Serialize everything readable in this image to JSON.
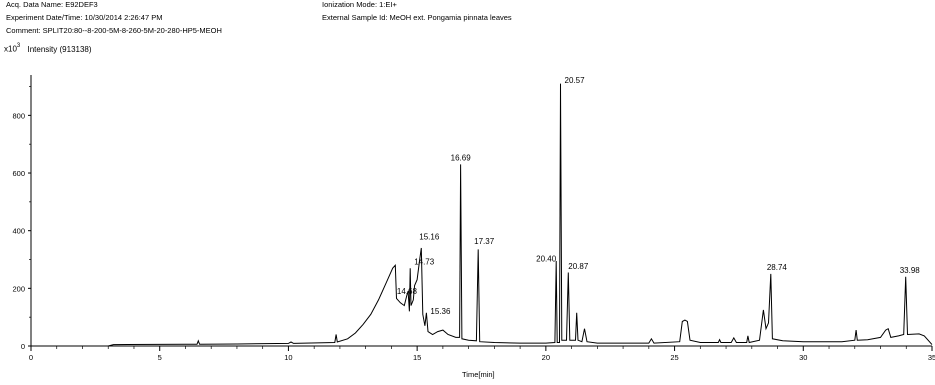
{
  "header": {
    "acq_line": "Acq. Data Name: E92DEF3",
    "experiment_line": "Experiment Date/Time: 10/30/2014 2:26:47 PM",
    "comment_line": "Comment: SPLIT20:80--8-200-5M-8-260-5M-20-280-HP5-MEOH",
    "ionization_line": "Ionization Mode: 1:EI+",
    "sample_line": "External Sample Id: MeOH ext. Pongamia pinnata leaves"
  },
  "chart_data": {
    "type": "line",
    "title": "",
    "ylabel_prefix": "x10",
    "ylabel_exp": "3",
    "ylabel": "Intensity (913138)",
    "xlabel": "Time[min]",
    "xlim": [
      0,
      35
    ],
    "ylim": [
      0,
      940
    ],
    "x_ticks": [
      0,
      5,
      10,
      15,
      20,
      25,
      30,
      35
    ],
    "y_ticks": [
      0,
      200,
      400,
      600,
      800
    ],
    "peak_labels": [
      {
        "label": "14.68",
        "x": 14.68,
        "y": 195
      },
      {
        "label": "14.73",
        "x": 14.73,
        "y": 275
      },
      {
        "label": "15.16",
        "x": 15.16,
        "y": 355
      },
      {
        "label": "15.36",
        "x": 15.36,
        "y": 125
      },
      {
        "label": "16.69",
        "x": 16.69,
        "y": 630
      },
      {
        "label": "17.37",
        "x": 17.37,
        "y": 340
      },
      {
        "label": "20.40",
        "x": 20.4,
        "y": 300
      },
      {
        "label": "20.57",
        "x": 20.57,
        "y": 920
      },
      {
        "label": "20.87",
        "x": 20.87,
        "y": 260
      },
      {
        "label": "28.74",
        "x": 28.74,
        "y": 250
      },
      {
        "label": "33.98",
        "x": 33.98,
        "y": 240
      }
    ],
    "series": [
      {
        "values": [
          [
            3.0,
            0
          ],
          [
            3.2,
            5
          ],
          [
            6.0,
            6
          ],
          [
            6.45,
            6
          ],
          [
            6.5,
            18
          ],
          [
            6.55,
            6
          ],
          [
            8.0,
            7
          ],
          [
            10.0,
            9
          ],
          [
            10.1,
            14
          ],
          [
            10.2,
            9
          ],
          [
            11.8,
            12
          ],
          [
            11.85,
            40
          ],
          [
            11.9,
            14
          ],
          [
            12.3,
            25
          ],
          [
            12.6,
            45
          ],
          [
            12.9,
            75
          ],
          [
            13.2,
            110
          ],
          [
            13.5,
            160
          ],
          [
            13.8,
            220
          ],
          [
            14.05,
            270
          ],
          [
            14.15,
            280
          ],
          [
            14.2,
            165
          ],
          [
            14.35,
            150
          ],
          [
            14.5,
            140
          ],
          [
            14.6,
            175
          ],
          [
            14.65,
            190
          ],
          [
            14.7,
            120
          ],
          [
            14.73,
            270
          ],
          [
            14.76,
            140
          ],
          [
            14.85,
            160
          ],
          [
            14.9,
            210
          ],
          [
            15.0,
            230
          ],
          [
            15.1,
            300
          ],
          [
            15.16,
            340
          ],
          [
            15.22,
            110
          ],
          [
            15.3,
            70
          ],
          [
            15.36,
            115
          ],
          [
            15.42,
            50
          ],
          [
            15.6,
            40
          ],
          [
            15.8,
            50
          ],
          [
            16.0,
            55
          ],
          [
            16.2,
            40
          ],
          [
            16.5,
            30
          ],
          [
            16.65,
            30
          ],
          [
            16.69,
            630
          ],
          [
            16.74,
            25
          ],
          [
            17.0,
            20
          ],
          [
            17.3,
            18
          ],
          [
            17.37,
            335
          ],
          [
            17.43,
            15
          ],
          [
            18.0,
            12
          ],
          [
            19.0,
            10
          ],
          [
            20.0,
            10
          ],
          [
            20.35,
            12
          ],
          [
            20.4,
            295
          ],
          [
            20.44,
            12
          ],
          [
            20.53,
            12
          ],
          [
            20.57,
            910
          ],
          [
            20.62,
            20
          ],
          [
            20.8,
            20
          ],
          [
            20.87,
            255
          ],
          [
            20.93,
            20
          ],
          [
            21.15,
            20
          ],
          [
            21.2,
            115
          ],
          [
            21.25,
            20
          ],
          [
            21.4,
            15
          ],
          [
            21.5,
            60
          ],
          [
            21.6,
            15
          ],
          [
            22.0,
            10
          ],
          [
            24.0,
            10
          ],
          [
            24.1,
            25
          ],
          [
            24.2,
            10
          ],
          [
            25.2,
            15
          ],
          [
            25.3,
            85
          ],
          [
            25.4,
            90
          ],
          [
            25.5,
            85
          ],
          [
            25.6,
            20
          ],
          [
            26.0,
            12
          ],
          [
            26.7,
            12
          ],
          [
            26.75,
            22
          ],
          [
            26.8,
            12
          ],
          [
            27.2,
            12
          ],
          [
            27.3,
            28
          ],
          [
            27.4,
            12
          ],
          [
            27.8,
            12
          ],
          [
            27.85,
            35
          ],
          [
            27.9,
            12
          ],
          [
            28.3,
            20
          ],
          [
            28.45,
            125
          ],
          [
            28.55,
            60
          ],
          [
            28.65,
            80
          ],
          [
            28.74,
            250
          ],
          [
            28.8,
            25
          ],
          [
            29.2,
            18
          ],
          [
            30.0,
            15
          ],
          [
            31.5,
            15
          ],
          [
            32.0,
            20
          ],
          [
            32.05,
            55
          ],
          [
            32.1,
            20
          ],
          [
            32.5,
            22
          ],
          [
            33.0,
            30
          ],
          [
            33.2,
            55
          ],
          [
            33.3,
            60
          ],
          [
            33.4,
            30
          ],
          [
            33.7,
            35
          ],
          [
            33.9,
            40
          ],
          [
            33.98,
            240
          ],
          [
            34.05,
            40
          ],
          [
            34.5,
            42
          ],
          [
            34.7,
            35
          ],
          [
            35.0,
            5
          ]
        ]
      }
    ]
  }
}
